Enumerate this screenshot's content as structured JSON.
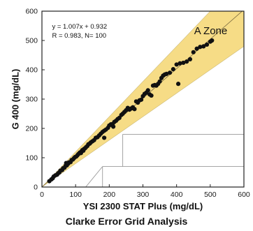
{
  "chart_data": {
    "type": "scatter",
    "title": "",
    "caption": "Clarke Error Grid Analysis",
    "xlabel": "YSI 2300 STAT Plus (mg/dL)",
    "ylabel": "G 400 (mg/dL)",
    "xlim": [
      0,
      600
    ],
    "ylim": [
      0,
      600
    ],
    "xticks": [
      0,
      100,
      200,
      300,
      400,
      500,
      600
    ],
    "yticks": [
      0,
      100,
      200,
      300,
      400,
      500,
      600
    ],
    "grid": false,
    "regression": {
      "equation_text": "y = 1.007x + 0.932",
      "stats_text": "R = 0.983, N= 100",
      "slope": 1.007,
      "intercept": 0.932
    },
    "zones": {
      "a_zone": {
        "label": "A Zone",
        "color": "#f6dc86",
        "upper": [
          [
            0,
            0
          ],
          [
            70,
            84
          ],
          [
            600,
            720
          ]
        ],
        "lower": [
          [
            600,
            480
          ],
          [
            70,
            56
          ],
          [
            0,
            0
          ]
        ]
      },
      "grid_lines": [
        [
          [
            130,
            0
          ],
          [
            180,
            70
          ]
        ],
        [
          [
            180,
            70
          ],
          [
            600,
            70
          ]
        ],
        [
          [
            180,
            0
          ],
          [
            180,
            70
          ]
        ],
        [
          [
            240,
            70
          ],
          [
            240,
            180
          ]
        ],
        [
          [
            240,
            180
          ],
          [
            600,
            180
          ]
        ]
      ]
    },
    "series": [
      {
        "color": "#111111",
        "points": [
          [
            22,
            20
          ],
          [
            28,
            26
          ],
          [
            32,
            30
          ],
          [
            35,
            36
          ],
          [
            40,
            40
          ],
          [
            45,
            42
          ],
          [
            48,
            47
          ],
          [
            52,
            50
          ],
          [
            55,
            56
          ],
          [
            60,
            58
          ],
          [
            63,
            64
          ],
          [
            67,
            66
          ],
          [
            70,
            72
          ],
          [
            74,
            74
          ],
          [
            78,
            80
          ],
          [
            80,
            84
          ],
          [
            85,
            85
          ],
          [
            88,
            92
          ],
          [
            92,
            94
          ],
          [
            95,
            98
          ],
          [
            98,
            102
          ],
          [
            102,
            104
          ],
          [
            105,
            108
          ],
          [
            108,
            112
          ],
          [
            110,
            114
          ],
          [
            113,
            118
          ],
          [
            116,
            116
          ],
          [
            118,
            122
          ],
          [
            120,
            126
          ],
          [
            123,
            124
          ],
          [
            125,
            130
          ],
          [
            128,
            132
          ],
          [
            131,
            136
          ],
          [
            135,
            140
          ],
          [
            138,
            146
          ],
          [
            142,
            148
          ],
          [
            145,
            152
          ],
          [
            150,
            156
          ],
          [
            155,
            160
          ],
          [
            160,
            168
          ],
          [
            165,
            170
          ],
          [
            170,
            176
          ],
          [
            175,
            182
          ],
          [
            180,
            188
          ],
          [
            185,
            192
          ],
          [
            190,
            196
          ],
          [
            196,
            202
          ],
          [
            200,
            210
          ],
          [
            205,
            214
          ],
          [
            210,
            215
          ],
          [
            215,
            222
          ],
          [
            220,
            226
          ],
          [
            225,
            232
          ],
          [
            230,
            236
          ],
          [
            236,
            246
          ],
          [
            240,
            250
          ],
          [
            245,
            256
          ],
          [
            250,
            262
          ],
          [
            255,
            270
          ],
          [
            260,
            264
          ],
          [
            265,
            268
          ],
          [
            270,
            272
          ],
          [
            275,
            266
          ],
          [
            280,
            292
          ],
          [
            285,
            288
          ],
          [
            290,
            296
          ],
          [
            295,
            298
          ],
          [
            300,
            310
          ],
          [
            305,
            318
          ],
          [
            310,
            322
          ],
          [
            315,
            330
          ],
          [
            320,
            316
          ],
          [
            325,
            312
          ],
          [
            330,
            346
          ],
          [
            335,
            348
          ],
          [
            340,
            346
          ],
          [
            345,
            352
          ],
          [
            350,
            360
          ],
          [
            355,
            372
          ],
          [
            360,
            380
          ],
          [
            365,
            384
          ],
          [
            370,
            386
          ],
          [
            380,
            390
          ],
          [
            390,
            402
          ],
          [
            400,
            418
          ],
          [
            405,
            352
          ],
          [
            410,
            422
          ],
          [
            420,
            424
          ],
          [
            430,
            428
          ],
          [
            440,
            436
          ],
          [
            450,
            460
          ],
          [
            460,
            472
          ],
          [
            470,
            478
          ],
          [
            480,
            480
          ],
          [
            490,
            486
          ],
          [
            500,
            496
          ],
          [
            505,
            500
          ],
          [
            185,
            168
          ],
          [
            212,
            206
          ],
          [
            72,
            82
          ]
        ]
      }
    ]
  }
}
